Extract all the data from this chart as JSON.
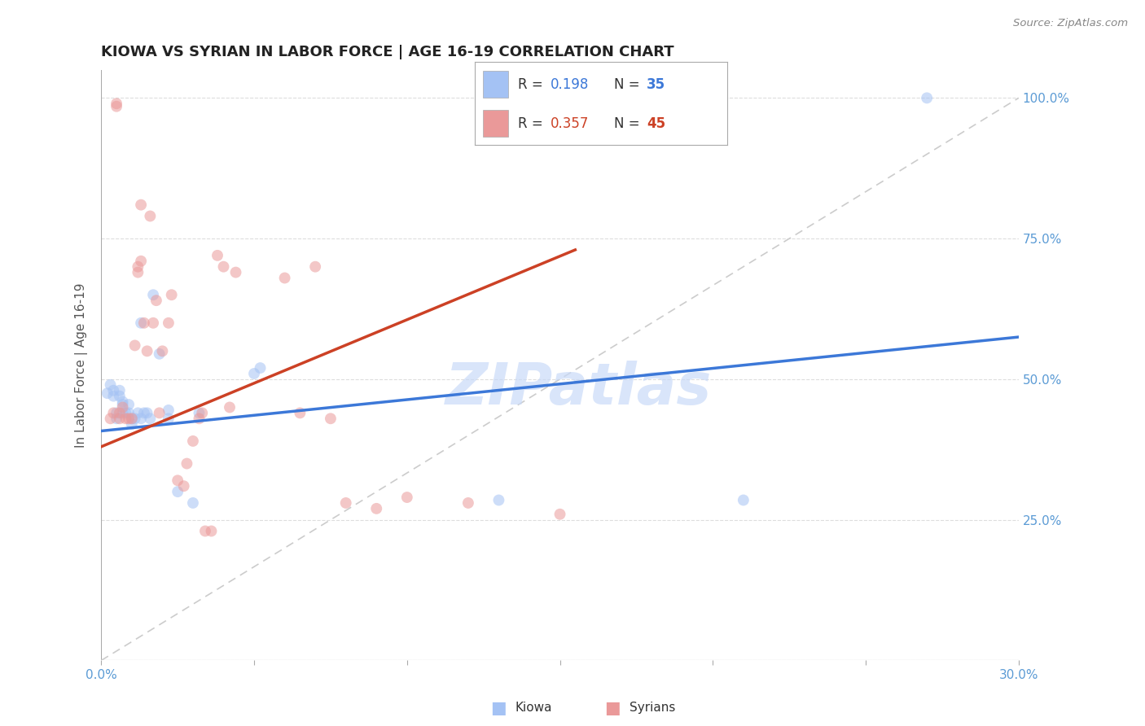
{
  "title": "KIOWA VS SYRIAN IN LABOR FORCE | AGE 16-19 CORRELATION CHART",
  "source": "Source: ZipAtlas.com",
  "ylabel": "In Labor Force | Age 16-19",
  "xlim": [
    0.0,
    0.3
  ],
  "ylim": [
    0.0,
    1.05
  ],
  "kiowa_R": 0.198,
  "kiowa_N": 35,
  "syrian_R": 0.357,
  "syrian_N": 45,
  "kiowa_color": "#a4c2f4",
  "syrian_color": "#ea9999",
  "kiowa_line_color": "#3c78d8",
  "syrian_line_color": "#cc4125",
  "diagonal_color": "#cccccc",
  "kiowa_x": [
    0.002,
    0.003,
    0.004,
    0.004,
    0.005,
    0.005,
    0.006,
    0.006,
    0.007,
    0.007,
    0.007,
    0.008,
    0.009,
    0.009,
    0.01,
    0.01,
    0.011,
    0.012,
    0.013,
    0.013,
    0.014,
    0.015,
    0.016,
    0.017,
    0.019,
    0.022,
    0.022,
    0.025,
    0.03,
    0.032,
    0.05,
    0.052,
    0.13,
    0.21,
    0.27
  ],
  "kiowa_y": [
    0.475,
    0.49,
    0.47,
    0.48,
    0.43,
    0.44,
    0.48,
    0.47,
    0.44,
    0.455,
    0.46,
    0.44,
    0.44,
    0.455,
    0.43,
    0.42,
    0.43,
    0.44,
    0.6,
    0.43,
    0.44,
    0.44,
    0.43,
    0.65,
    0.545,
    0.43,
    0.445,
    0.3,
    0.28,
    0.44,
    0.51,
    0.52,
    0.285,
    0.285,
    1.0
  ],
  "syrian_x": [
    0.003,
    0.004,
    0.005,
    0.005,
    0.006,
    0.006,
    0.007,
    0.008,
    0.009,
    0.01,
    0.011,
    0.012,
    0.012,
    0.013,
    0.013,
    0.014,
    0.015,
    0.016,
    0.017,
    0.018,
    0.019,
    0.02,
    0.022,
    0.023,
    0.025,
    0.027,
    0.028,
    0.03,
    0.032,
    0.033,
    0.034,
    0.036,
    0.038,
    0.04,
    0.042,
    0.044,
    0.06,
    0.065,
    0.07,
    0.075,
    0.08,
    0.09,
    0.1,
    0.12,
    0.15
  ],
  "syrian_y": [
    0.43,
    0.44,
    0.99,
    0.985,
    0.44,
    0.43,
    0.45,
    0.43,
    0.43,
    0.43,
    0.56,
    0.7,
    0.69,
    0.71,
    0.81,
    0.6,
    0.55,
    0.79,
    0.6,
    0.64,
    0.44,
    0.55,
    0.6,
    0.65,
    0.32,
    0.31,
    0.35,
    0.39,
    0.43,
    0.44,
    0.23,
    0.23,
    0.72,
    0.7,
    0.45,
    0.69,
    0.68,
    0.44,
    0.7,
    0.43,
    0.28,
    0.27,
    0.29,
    0.28,
    0.26
  ],
  "kiowa_line_x": [
    0.0,
    0.3
  ],
  "kiowa_line_y": [
    0.408,
    0.575
  ],
  "syrian_line_x": [
    0.0,
    0.155
  ],
  "syrian_line_y": [
    0.38,
    0.73
  ],
  "background_color": "#ffffff",
  "grid_color": "#dddddd",
  "title_fontsize": 13,
  "axis_label_fontsize": 11,
  "tick_fontsize": 11,
  "marker_size": 100,
  "marker_alpha": 0.55,
  "watermark_text": "ZIPatlas",
  "watermark_color": "#c9daf8",
  "legend_R1_color": "#3c78d8",
  "legend_R2_color": "#cc4125",
  "legend_N1_color": "#3c78d8",
  "legend_N2_color": "#cc4125"
}
